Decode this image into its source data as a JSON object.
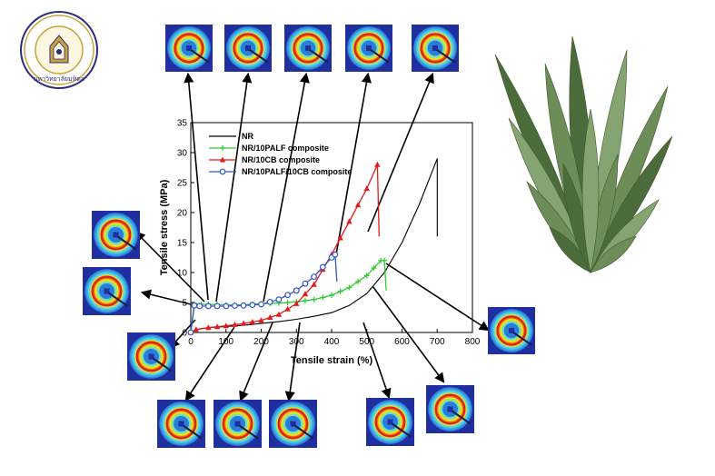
{
  "logo": {
    "text": "มหาวิทยาลัยมหิดล"
  },
  "chart_data": {
    "type": "line",
    "xlabel": "Tensile strain (%)",
    "ylabel": "Tensile stress (MPa)",
    "xlim": [
      0,
      800
    ],
    "ylim": [
      0,
      35
    ],
    "xticks": [
      "0",
      "100",
      "200",
      "300",
      "400",
      "500",
      "600",
      "700",
      "800"
    ],
    "yticks": [
      "0",
      "5",
      "10",
      "15",
      "20",
      "25",
      "30",
      "35"
    ],
    "legend_position": "top-left",
    "series": [
      {
        "name": "NR",
        "color": "#000000",
        "marker": "none",
        "x": [
          0,
          15,
          50,
          100,
          150,
          200,
          250,
          300,
          350,
          400,
          450,
          500,
          550,
          600,
          650,
          700,
          700
        ],
        "y": [
          0,
          0.5,
          0.8,
          1.0,
          1.2,
          1.5,
          1.8,
          2.2,
          2.7,
          3.3,
          4.5,
          6.5,
          10.0,
          15.0,
          21.5,
          29.0,
          16.0
        ]
      },
      {
        "name": "NR/10PALF composite",
        "color": "#33cc33",
        "marker": "plus",
        "x": [
          0,
          10,
          30,
          50,
          100,
          150,
          200,
          250,
          300,
          350,
          400,
          450,
          500,
          540,
          550,
          555
        ],
        "y": [
          0,
          4.8,
          4.7,
          4.7,
          4.6,
          4.6,
          4.8,
          4.9,
          5.1,
          5.5,
          6.2,
          7.5,
          9.5,
          12.0,
          12.0,
          7.0
        ]
      },
      {
        "name": "NR/10CB composite",
        "color": "#e31a1c",
        "marker": "triangle",
        "x": [
          0,
          15,
          50,
          100,
          150,
          200,
          250,
          300,
          350,
          400,
          450,
          500,
          530,
          535
        ],
        "y": [
          0,
          0.5,
          0.8,
          1.1,
          1.5,
          2.0,
          3.0,
          4.8,
          8.0,
          13.0,
          18.5,
          24.0,
          28.0,
          16.0
        ]
      },
      {
        "name": "NR/10PALF/10CB composite",
        "color": "#3355cc",
        "marker": "circle",
        "x": [
          0,
          10,
          25,
          50,
          100,
          150,
          200,
          250,
          300,
          350,
          400,
          410,
          415
        ],
        "y": [
          0,
          4.5,
          4.4,
          4.4,
          4.4,
          4.5,
          4.7,
          5.5,
          7.0,
          9.3,
          12.5,
          13.0,
          8.5
        ]
      }
    ]
  },
  "colors": {
    "plot_frame": "#000000",
    "waxs_dark_blue": "#1f2f9f",
    "waxs_light_blue": "#2aa7e8",
    "waxs_cyan": "#4fd8f2",
    "waxs_yellow": "#f5e50a",
    "waxs_red": "#e0221c",
    "leaf_dark": "#4c6b3a",
    "leaf_light": "#7fa06b",
    "seal_gold": "#c8a23a",
    "seal_navy": "#2b2d7a"
  },
  "waxs_icons": [
    "waxs-pattern-icon",
    "waxs-pattern-icon",
    "waxs-pattern-icon",
    "waxs-pattern-icon",
    "waxs-pattern-icon",
    "waxs-pattern-icon",
    "waxs-pattern-icon",
    "waxs-pattern-icon",
    "waxs-pattern-icon",
    "waxs-pattern-icon",
    "waxs-pattern-icon",
    "waxs-pattern-icon",
    "waxs-pattern-icon",
    "waxs-pattern-icon"
  ]
}
